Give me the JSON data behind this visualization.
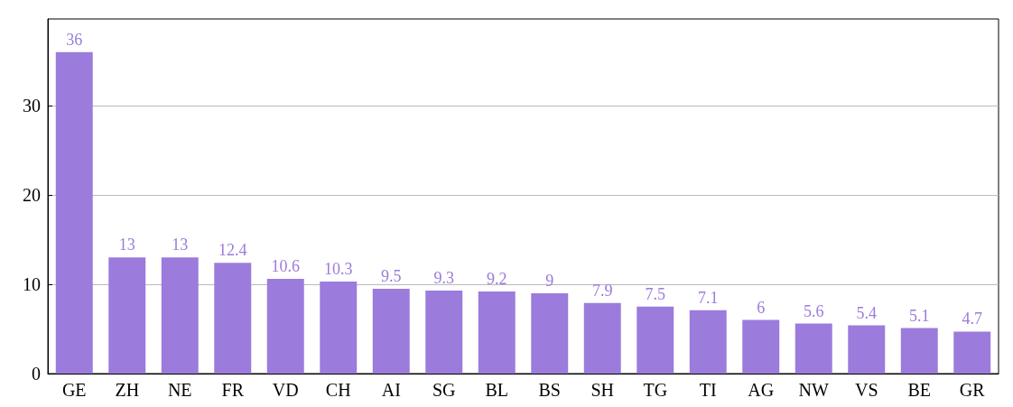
{
  "chart_data": {
    "type": "bar",
    "categories": [
      "GE",
      "ZH",
      "NE",
      "FR",
      "VD",
      "CH",
      "AI",
      "SG",
      "BL",
      "BS",
      "SH",
      "TG",
      "TI",
      "AG",
      "NW",
      "VS",
      "BE",
      "GR"
    ],
    "values": [
      36,
      13,
      13,
      12.4,
      10.6,
      10.3,
      9.5,
      9.3,
      9.2,
      9,
      7.9,
      7.5,
      7.1,
      6,
      5.6,
      5.4,
      5.1,
      4.7
    ],
    "color": "#9b7bdb",
    "ylim": [
      0,
      39.7
    ],
    "yticks": [
      0,
      10,
      20,
      30
    ],
    "grid": "y",
    "data_labels": true
  }
}
